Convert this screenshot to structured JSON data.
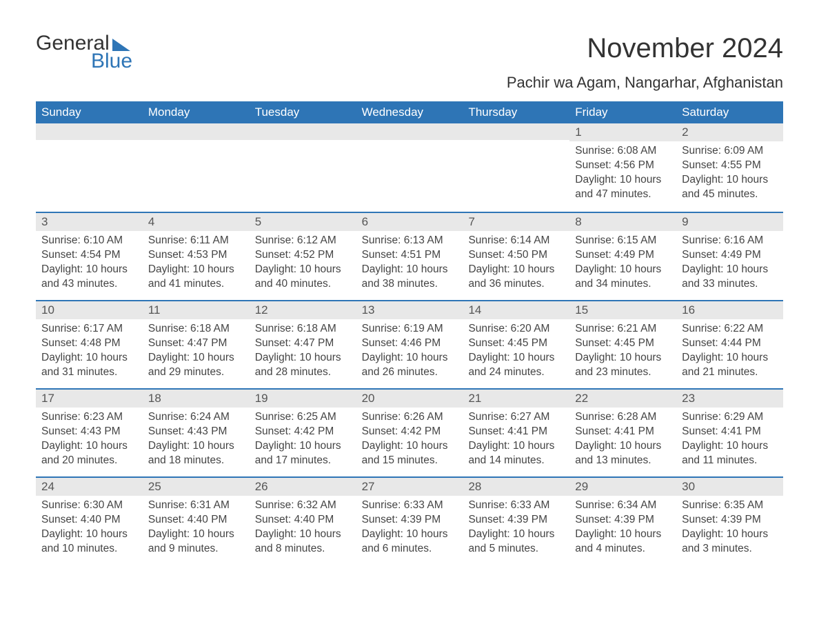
{
  "logo": {
    "word1": "General",
    "word2": "Blue"
  },
  "title": "November 2024",
  "location": "Pachir wa Agam, Nangarhar, Afghanistan",
  "accent_color": "#2e75b6",
  "header_bg": "#2e75b6",
  "daynum_bg": "#e8e8e8",
  "text_color": "#333333",
  "weekdays": [
    "Sunday",
    "Monday",
    "Tuesday",
    "Wednesday",
    "Thursday",
    "Friday",
    "Saturday"
  ],
  "weeks": [
    [
      {
        "num": "",
        "sunrise": "",
        "sunset": "",
        "daylight": ""
      },
      {
        "num": "",
        "sunrise": "",
        "sunset": "",
        "daylight": ""
      },
      {
        "num": "",
        "sunrise": "",
        "sunset": "",
        "daylight": ""
      },
      {
        "num": "",
        "sunrise": "",
        "sunset": "",
        "daylight": ""
      },
      {
        "num": "",
        "sunrise": "",
        "sunset": "",
        "daylight": ""
      },
      {
        "num": "1",
        "sunrise": "Sunrise: 6:08 AM",
        "sunset": "Sunset: 4:56 PM",
        "daylight": "Daylight: 10 hours and 47 minutes."
      },
      {
        "num": "2",
        "sunrise": "Sunrise: 6:09 AM",
        "sunset": "Sunset: 4:55 PM",
        "daylight": "Daylight: 10 hours and 45 minutes."
      }
    ],
    [
      {
        "num": "3",
        "sunrise": "Sunrise: 6:10 AM",
        "sunset": "Sunset: 4:54 PM",
        "daylight": "Daylight: 10 hours and 43 minutes."
      },
      {
        "num": "4",
        "sunrise": "Sunrise: 6:11 AM",
        "sunset": "Sunset: 4:53 PM",
        "daylight": "Daylight: 10 hours and 41 minutes."
      },
      {
        "num": "5",
        "sunrise": "Sunrise: 6:12 AM",
        "sunset": "Sunset: 4:52 PM",
        "daylight": "Daylight: 10 hours and 40 minutes."
      },
      {
        "num": "6",
        "sunrise": "Sunrise: 6:13 AM",
        "sunset": "Sunset: 4:51 PM",
        "daylight": "Daylight: 10 hours and 38 minutes."
      },
      {
        "num": "7",
        "sunrise": "Sunrise: 6:14 AM",
        "sunset": "Sunset: 4:50 PM",
        "daylight": "Daylight: 10 hours and 36 minutes."
      },
      {
        "num": "8",
        "sunrise": "Sunrise: 6:15 AM",
        "sunset": "Sunset: 4:49 PM",
        "daylight": "Daylight: 10 hours and 34 minutes."
      },
      {
        "num": "9",
        "sunrise": "Sunrise: 6:16 AM",
        "sunset": "Sunset: 4:49 PM",
        "daylight": "Daylight: 10 hours and 33 minutes."
      }
    ],
    [
      {
        "num": "10",
        "sunrise": "Sunrise: 6:17 AM",
        "sunset": "Sunset: 4:48 PM",
        "daylight": "Daylight: 10 hours and 31 minutes."
      },
      {
        "num": "11",
        "sunrise": "Sunrise: 6:18 AM",
        "sunset": "Sunset: 4:47 PM",
        "daylight": "Daylight: 10 hours and 29 minutes."
      },
      {
        "num": "12",
        "sunrise": "Sunrise: 6:18 AM",
        "sunset": "Sunset: 4:47 PM",
        "daylight": "Daylight: 10 hours and 28 minutes."
      },
      {
        "num": "13",
        "sunrise": "Sunrise: 6:19 AM",
        "sunset": "Sunset: 4:46 PM",
        "daylight": "Daylight: 10 hours and 26 minutes."
      },
      {
        "num": "14",
        "sunrise": "Sunrise: 6:20 AM",
        "sunset": "Sunset: 4:45 PM",
        "daylight": "Daylight: 10 hours and 24 minutes."
      },
      {
        "num": "15",
        "sunrise": "Sunrise: 6:21 AM",
        "sunset": "Sunset: 4:45 PM",
        "daylight": "Daylight: 10 hours and 23 minutes."
      },
      {
        "num": "16",
        "sunrise": "Sunrise: 6:22 AM",
        "sunset": "Sunset: 4:44 PM",
        "daylight": "Daylight: 10 hours and 21 minutes."
      }
    ],
    [
      {
        "num": "17",
        "sunrise": "Sunrise: 6:23 AM",
        "sunset": "Sunset: 4:43 PM",
        "daylight": "Daylight: 10 hours and 20 minutes."
      },
      {
        "num": "18",
        "sunrise": "Sunrise: 6:24 AM",
        "sunset": "Sunset: 4:43 PM",
        "daylight": "Daylight: 10 hours and 18 minutes."
      },
      {
        "num": "19",
        "sunrise": "Sunrise: 6:25 AM",
        "sunset": "Sunset: 4:42 PM",
        "daylight": "Daylight: 10 hours and 17 minutes."
      },
      {
        "num": "20",
        "sunrise": "Sunrise: 6:26 AM",
        "sunset": "Sunset: 4:42 PM",
        "daylight": "Daylight: 10 hours and 15 minutes."
      },
      {
        "num": "21",
        "sunrise": "Sunrise: 6:27 AM",
        "sunset": "Sunset: 4:41 PM",
        "daylight": "Daylight: 10 hours and 14 minutes."
      },
      {
        "num": "22",
        "sunrise": "Sunrise: 6:28 AM",
        "sunset": "Sunset: 4:41 PM",
        "daylight": "Daylight: 10 hours and 13 minutes."
      },
      {
        "num": "23",
        "sunrise": "Sunrise: 6:29 AM",
        "sunset": "Sunset: 4:41 PM",
        "daylight": "Daylight: 10 hours and 11 minutes."
      }
    ],
    [
      {
        "num": "24",
        "sunrise": "Sunrise: 6:30 AM",
        "sunset": "Sunset: 4:40 PM",
        "daylight": "Daylight: 10 hours and 10 minutes."
      },
      {
        "num": "25",
        "sunrise": "Sunrise: 6:31 AM",
        "sunset": "Sunset: 4:40 PM",
        "daylight": "Daylight: 10 hours and 9 minutes."
      },
      {
        "num": "26",
        "sunrise": "Sunrise: 6:32 AM",
        "sunset": "Sunset: 4:40 PM",
        "daylight": "Daylight: 10 hours and 8 minutes."
      },
      {
        "num": "27",
        "sunrise": "Sunrise: 6:33 AM",
        "sunset": "Sunset: 4:39 PM",
        "daylight": "Daylight: 10 hours and 6 minutes."
      },
      {
        "num": "28",
        "sunrise": "Sunrise: 6:33 AM",
        "sunset": "Sunset: 4:39 PM",
        "daylight": "Daylight: 10 hours and 5 minutes."
      },
      {
        "num": "29",
        "sunrise": "Sunrise: 6:34 AM",
        "sunset": "Sunset: 4:39 PM",
        "daylight": "Daylight: 10 hours and 4 minutes."
      },
      {
        "num": "30",
        "sunrise": "Sunrise: 6:35 AM",
        "sunset": "Sunset: 4:39 PM",
        "daylight": "Daylight: 10 hours and 3 minutes."
      }
    ]
  ]
}
